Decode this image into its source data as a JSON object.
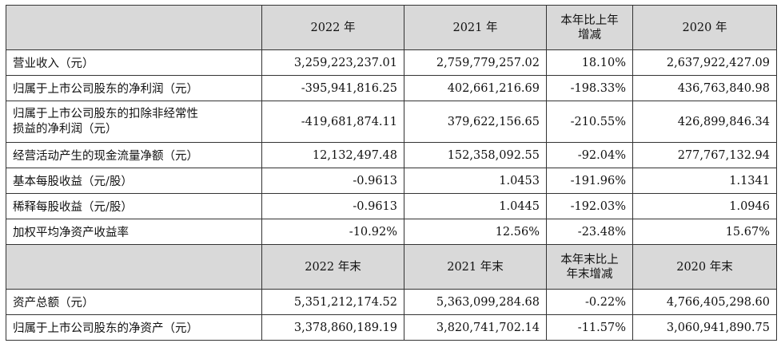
{
  "header1": {
    "col1": "2022 年",
    "col2": "2021 年",
    "col3_line1": "本年比上年",
    "col3_line2": "增减",
    "col4": "2020 年"
  },
  "rows1": [
    {
      "label": "营业收入（元）",
      "v2022": "3,259,223,237.01",
      "v2021": "2,759,779,257.02",
      "change": "18.10%",
      "v2020": "2,637,922,427.09"
    },
    {
      "label": "归属于上市公司股东的净利润（元）",
      "v2022": "-395,941,816.25",
      "v2021": "402,661,216.69",
      "change": "-198.33%",
      "v2020": "436,763,840.98"
    },
    {
      "label_line1": "归属于上市公司股东的扣除非经常性",
      "label_line2": "损益的净利润（元）",
      "v2022": "-419,681,874.11",
      "v2021": "379,622,156.65",
      "change": "-210.55%",
      "v2020": "426,899,846.34"
    },
    {
      "label": "经营活动产生的现金流量净额（元）",
      "v2022": "12,132,497.48",
      "v2021": "152,358,092.55",
      "change": "-92.04%",
      "v2020": "277,767,132.94"
    },
    {
      "label": "基本每股收益（元/股）",
      "v2022": "-0.9613",
      "v2021": "1.0453",
      "change": "-191.96%",
      "v2020": "1.1341"
    },
    {
      "label": "稀释每股收益（元/股）",
      "v2022": "-0.9613",
      "v2021": "1.0445",
      "change": "-192.03%",
      "v2020": "1.0946"
    },
    {
      "label": "加权平均净资产收益率",
      "v2022": "-10.92%",
      "v2021": "12.56%",
      "change": "-23.48%",
      "v2020": "15.67%"
    }
  ],
  "header2": {
    "col1": "2022 年末",
    "col2": "2021 年末",
    "col3_line1": "本年末比上",
    "col3_line2": "年末增减",
    "col4": "2020 年末"
  },
  "rows2": [
    {
      "label": "资产总额（元）",
      "v2022": "5,351,212,174.52",
      "v2021": "5,363,099,284.68",
      "change": "-0.22%",
      "v2020": "4,766,405,298.60"
    },
    {
      "label": "归属于上市公司股东的净资产（元）",
      "v2022": "3,378,860,189.19",
      "v2021": "3,820,741,702.14",
      "change": "-11.57%",
      "v2020": "3,060,941,890.75"
    }
  ]
}
